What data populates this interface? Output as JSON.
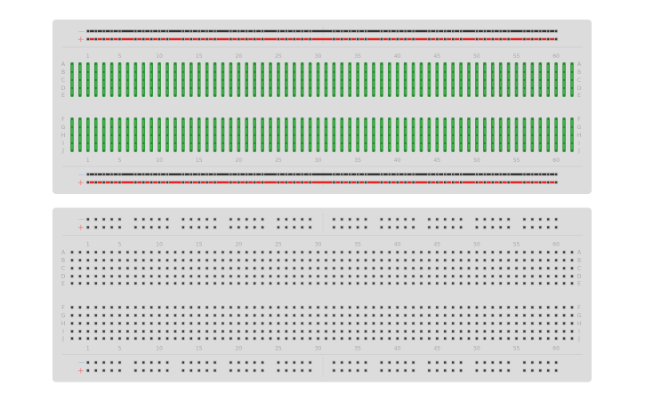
{
  "colors": {
    "board": "#dcdcdc",
    "hole": "#3a3a3a",
    "strip": "#3daf48",
    "negative_rail": "#333333",
    "positive_rail": "#e02424",
    "minus_sign": "#8fb8e0",
    "plus_sign": "#f08080"
  },
  "rail_symbols": {
    "minus": "—",
    "plus": "+"
  },
  "column_labels": [
    "1",
    "5",
    "10",
    "15",
    "20",
    "25",
    "30",
    "35",
    "40",
    "45",
    "50",
    "55",
    "60"
  ],
  "column_label_numbers": [
    1,
    5,
    10,
    15,
    20,
    25,
    30,
    35,
    40,
    45,
    50,
    55,
    60
  ],
  "row_labels_top": [
    "A",
    "B",
    "C",
    "D",
    "E"
  ],
  "row_labels_bottom": [
    "F",
    "G",
    "H",
    "I",
    "J"
  ],
  "boards": [
    {
      "name": "breadboard-connected",
      "show_connections": true
    },
    {
      "name": "breadboard-plain",
      "show_connections": false
    }
  ]
}
